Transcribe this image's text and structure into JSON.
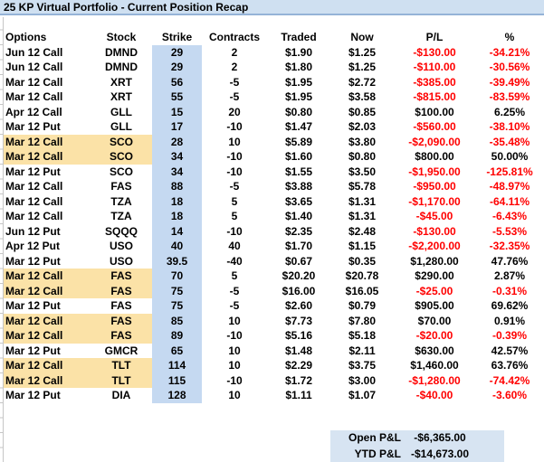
{
  "title": "25 KP Virtual Portfolio - Current Position Recap",
  "table": {
    "columns": [
      "Options",
      "Stock",
      "Strike",
      "Contracts",
      "Traded",
      "Now",
      "P/L",
      "%"
    ],
    "rows": [
      {
        "options": "Jun 12 Call",
        "stock": "DMND",
        "strike": "29",
        "contracts": "2",
        "traded": "$1.90",
        "now": "$1.25",
        "pl": "-$130.00",
        "pct": "-34.21%",
        "highlight": false,
        "neg": true
      },
      {
        "options": "Jun 12 Call",
        "stock": "DMND",
        "strike": "29",
        "contracts": "2",
        "traded": "$1.80",
        "now": "$1.25",
        "pl": "-$110.00",
        "pct": "-30.56%",
        "highlight": false,
        "neg": true
      },
      {
        "options": "Mar 12 Call",
        "stock": "XRT",
        "strike": "56",
        "contracts": "-5",
        "traded": "$1.95",
        "now": "$2.72",
        "pl": "-$385.00",
        "pct": "-39.49%",
        "highlight": false,
        "neg": true
      },
      {
        "options": "Mar 12 Call",
        "stock": "XRT",
        "strike": "55",
        "contracts": "-5",
        "traded": "$1.95",
        "now": "$3.58",
        "pl": "-$815.00",
        "pct": "-83.59%",
        "highlight": false,
        "neg": true
      },
      {
        "options": "Apr 12 Call",
        "stock": "GLL",
        "strike": "15",
        "contracts": "20",
        "traded": "$0.80",
        "now": "$0.85",
        "pl": "$100.00",
        "pct": "6.25%",
        "highlight": false,
        "neg": false
      },
      {
        "options": "Mar 12 Put",
        "stock": "GLL",
        "strike": "17",
        "contracts": "-10",
        "traded": "$1.47",
        "now": "$2.03",
        "pl": "-$560.00",
        "pct": "-38.10%",
        "highlight": false,
        "neg": true
      },
      {
        "options": "Mar 12 Call",
        "stock": "SCO",
        "strike": "28",
        "contracts": "10",
        "traded": "$5.89",
        "now": "$3.80",
        "pl": "-$2,090.00",
        "pct": "-35.48%",
        "highlight": true,
        "neg": true
      },
      {
        "options": "Mar 12 Call",
        "stock": "SCO",
        "strike": "34",
        "contracts": "-10",
        "traded": "$1.60",
        "now": "$0.80",
        "pl": "$800.00",
        "pct": "50.00%",
        "highlight": true,
        "neg": false
      },
      {
        "options": "Mar 12 Put",
        "stock": "SCO",
        "strike": "34",
        "contracts": "-10",
        "traded": "$1.55",
        "now": "$3.50",
        "pl": "-$1,950.00",
        "pct": "-125.81%",
        "highlight": false,
        "neg": true
      },
      {
        "options": "Mar 12 Call",
        "stock": "FAS",
        "strike": "88",
        "contracts": "-5",
        "traded": "$3.88",
        "now": "$5.78",
        "pl": "-$950.00",
        "pct": "-48.97%",
        "highlight": false,
        "neg": true
      },
      {
        "options": "Mar 12 Call",
        "stock": "TZA",
        "strike": "18",
        "contracts": "5",
        "traded": "$3.65",
        "now": "$1.31",
        "pl": "-$1,170.00",
        "pct": "-64.11%",
        "highlight": false,
        "neg": true
      },
      {
        "options": "Mar 12 Call",
        "stock": "TZA",
        "strike": "18",
        "contracts": "5",
        "traded": "$1.40",
        "now": "$1.31",
        "pl": "-$45.00",
        "pct": "-6.43%",
        "highlight": false,
        "neg": true
      },
      {
        "options": "Jun 12 Put",
        "stock": "SQQQ",
        "strike": "14",
        "contracts": "-10",
        "traded": "$2.35",
        "now": "$2.48",
        "pl": "-$130.00",
        "pct": "-5.53%",
        "highlight": false,
        "neg": true
      },
      {
        "options": "Apr 12 Put",
        "stock": "USO",
        "strike": "40",
        "contracts": "40",
        "traded": "$1.70",
        "now": "$1.15",
        "pl": "-$2,200.00",
        "pct": "-32.35%",
        "highlight": false,
        "neg": true
      },
      {
        "options": "Mar 12 Put",
        "stock": "USO",
        "strike": "39.5",
        "contracts": "-40",
        "traded": "$0.67",
        "now": "$0.35",
        "pl": "$1,280.00",
        "pct": "47.76%",
        "highlight": false,
        "neg": false
      },
      {
        "options": "Mar 12 Call",
        "stock": "FAS",
        "strike": "70",
        "contracts": "5",
        "traded": "$20.20",
        "now": "$20.78",
        "pl": "$290.00",
        "pct": "2.87%",
        "highlight": true,
        "neg": false
      },
      {
        "options": "Mar 12 Call",
        "stock": "FAS",
        "strike": "75",
        "contracts": "-5",
        "traded": "$16.00",
        "now": "$16.05",
        "pl": "-$25.00",
        "pct": "-0.31%",
        "highlight": true,
        "neg": true
      },
      {
        "options": "Mar 12 Put",
        "stock": "FAS",
        "strike": "75",
        "contracts": "-5",
        "traded": "$2.60",
        "now": "$0.79",
        "pl": "$905.00",
        "pct": "69.62%",
        "highlight": false,
        "neg": false
      },
      {
        "options": "Mar 12 Call",
        "stock": "FAS",
        "strike": "85",
        "contracts": "10",
        "traded": "$7.73",
        "now": "$7.80",
        "pl": "$70.00",
        "pct": "0.91%",
        "highlight": true,
        "neg": false
      },
      {
        "options": "Mar 12 Call",
        "stock": "FAS",
        "strike": "89",
        "contracts": "-10",
        "traded": "$5.16",
        "now": "$5.18",
        "pl": "-$20.00",
        "pct": "-0.39%",
        "highlight": true,
        "neg": true
      },
      {
        "options": "Mar 12 Put",
        "stock": "GMCR",
        "strike": "65",
        "contracts": "10",
        "traded": "$1.48",
        "now": "$2.11",
        "pl": "$630.00",
        "pct": "42.57%",
        "highlight": false,
        "neg": false
      },
      {
        "options": "Mar 12 Call",
        "stock": "TLT",
        "strike": "114",
        "contracts": "10",
        "traded": "$2.29",
        "now": "$3.75",
        "pl": "$1,460.00",
        "pct": "63.76%",
        "highlight": true,
        "neg": false
      },
      {
        "options": "Mar 12 Call",
        "stock": "TLT",
        "strike": "115",
        "contracts": "-10",
        "traded": "$1.72",
        "now": "$3.00",
        "pl": "-$1,280.00",
        "pct": "-74.42%",
        "highlight": true,
        "neg": true
      },
      {
        "options": "Mar 12 Put",
        "stock": "DIA",
        "strike": "128",
        "contracts": "10",
        "traded": "$1.11",
        "now": "$1.07",
        "pl": "-$40.00",
        "pct": "-3.60%",
        "highlight": false,
        "neg": true
      }
    ]
  },
  "summary": {
    "open_label": "Open P&L",
    "open_value": "-$6,365.00",
    "ytd_label": "YTD P&L",
    "ytd_value": "-$14,673.00"
  },
  "colors": {
    "title_bg": "#CFE0F1",
    "title_border": "#95B3D7",
    "strike_col_bg": "#C5D9F1",
    "highlight_bg": "#FBE2A7",
    "summary_bg": "#D7E4F2",
    "loss_red": "#FF0000",
    "text": "#000000"
  }
}
